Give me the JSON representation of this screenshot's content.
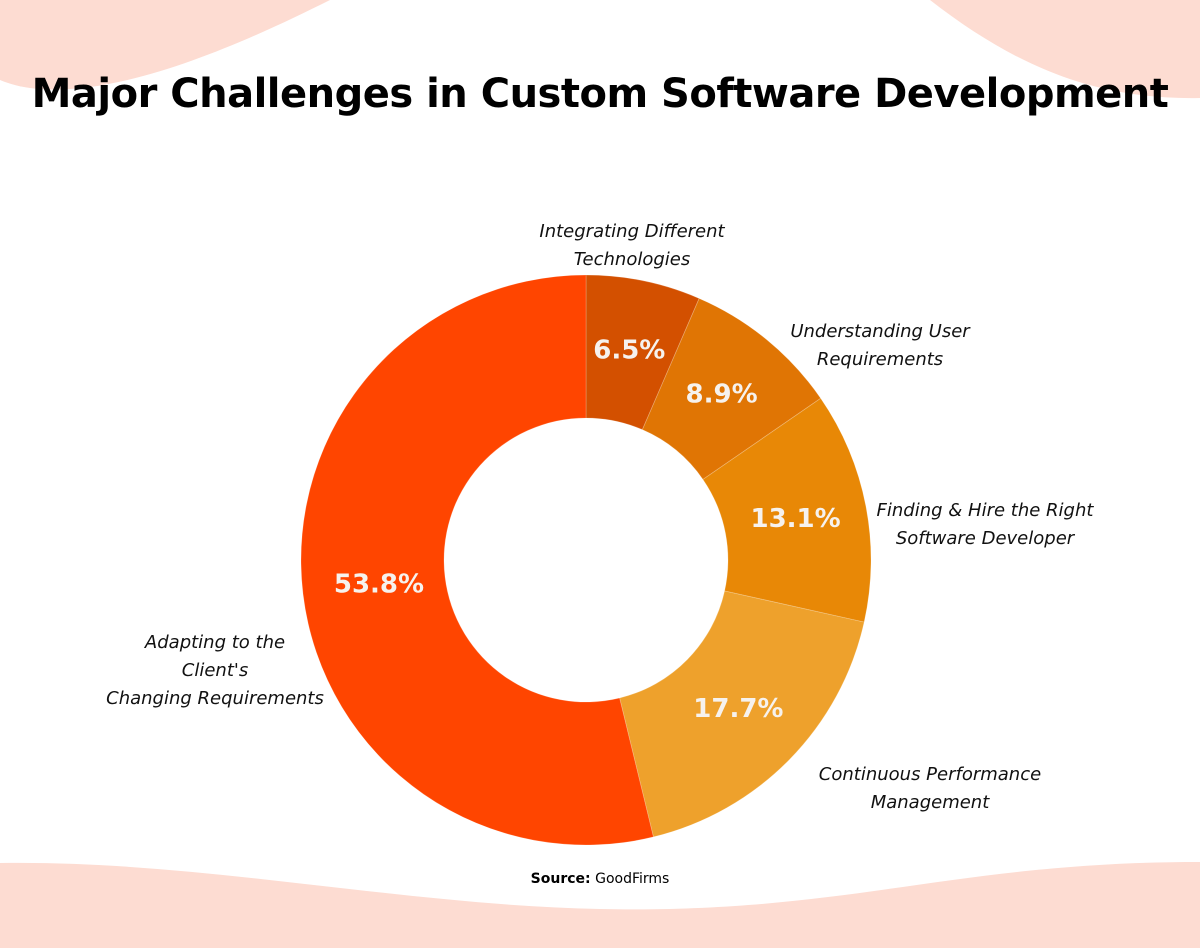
{
  "chart_data": {
    "type": "pie",
    "donut": true,
    "title": "Major Challenges in Custom Software Development",
    "slices": [
      {
        "label": "Integrating Different\nTechnologies",
        "value": 6.5,
        "value_label": "6.5%",
        "color": "#d35000"
      },
      {
        "label": "Understanding User\nRequirements",
        "value": 8.9,
        "value_label": "8.9%",
        "color": "#e07504"
      },
      {
        "label": "Finding & Hire the Right\nSoftware Developer",
        "value": 13.1,
        "value_label": "13.1%",
        "color": "#e88806"
      },
      {
        "label": "Continuous Performance\nManagement",
        "value": 17.7,
        "value_label": "17.7%",
        "color": "#eea12c"
      },
      {
        "label": "Adapting to the\nClient's\nChanging Requirements",
        "value": 53.8,
        "value_label": "53.8%",
        "color": "#ff4500"
      }
    ],
    "legend": "none",
    "start": "top, clockwise"
  },
  "source": {
    "prefix": "Source:",
    "name": "GoodFirms"
  },
  "colors": {
    "background_wave": "#fddcd2"
  }
}
